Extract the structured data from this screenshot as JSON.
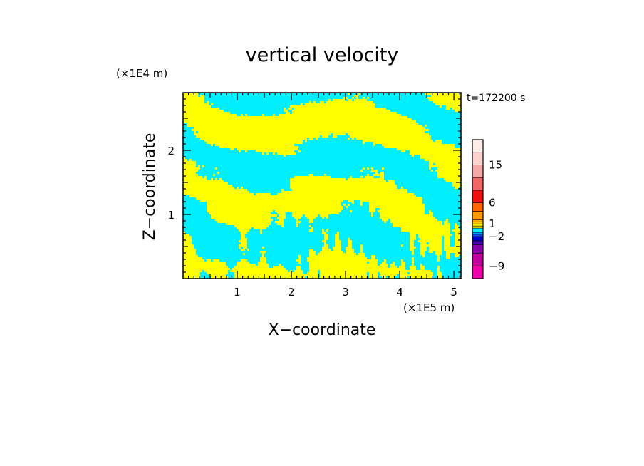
{
  "chart_data": {
    "type": "heatmap",
    "title": "vertical velocity",
    "xlabel": "X−coordinate",
    "ylabel": "Z−coordinate",
    "x_unit": "(×1E5 m)",
    "y_unit": "(×1E4 m)",
    "time_label": "t=172200 s",
    "xlim": [
      0,
      5.13
    ],
    "ylim": [
      0,
      2.9
    ],
    "x_ticks": [
      {
        "value": 1,
        "label": "1"
      },
      {
        "value": 2,
        "label": "2"
      },
      {
        "value": 3,
        "label": "3"
      },
      {
        "value": 4,
        "label": "4"
      },
      {
        "value": 5,
        "label": "5"
      }
    ],
    "y_ticks": [
      {
        "value": 1,
        "label": "1"
      },
      {
        "value": 2,
        "label": "2"
      }
    ],
    "field_colors": {
      "positive": "#ffff00",
      "negative": "#00efff"
    },
    "colorbar": {
      "levels": [
        {
          "lo": -12,
          "hi": -9,
          "color": "#ee00aa"
        },
        {
          "lo": -9,
          "hi": -6,
          "color": "#c0009a"
        },
        {
          "lo": -6,
          "hi": -4,
          "color": "#8800aa"
        },
        {
          "lo": -4,
          "hi": -3,
          "color": "#4400aa"
        },
        {
          "lo": -3,
          "hi": -2,
          "color": "#0000cc"
        },
        {
          "lo": -2,
          "hi": -1.5,
          "color": "#0055ff"
        },
        {
          "lo": -1.5,
          "hi": -1,
          "color": "#0099ff"
        },
        {
          "lo": -1,
          "hi": 0,
          "color": "#00efff"
        },
        {
          "lo": 0,
          "hi": 0.5,
          "color": "#ffff00"
        },
        {
          "lo": 0.5,
          "hi": 1,
          "color": "#ffee00"
        },
        {
          "lo": 1,
          "hi": 1.5,
          "color": "#ffcc00"
        },
        {
          "lo": 1.5,
          "hi": 2,
          "color": "#ffaa00"
        },
        {
          "lo": 2,
          "hi": 4,
          "color": "#ff9900"
        },
        {
          "lo": 4,
          "hi": 6,
          "color": "#ff6600"
        },
        {
          "lo": 6,
          "hi": 9,
          "color": "#ee1111"
        },
        {
          "lo": 9,
          "hi": 12,
          "color": "#ee6666"
        },
        {
          "lo": 12,
          "hi": 15,
          "color": "#f5a8a8"
        },
        {
          "lo": 15,
          "hi": 18,
          "color": "#fbd2cc"
        },
        {
          "lo": 18,
          "hi": 21,
          "color": "#fdece8"
        }
      ],
      "tick_labels": [
        {
          "value": 15,
          "label": "15"
        },
        {
          "value": 6,
          "label": "6"
        },
        {
          "value": 1,
          "label": "1"
        },
        {
          "value": -2,
          "label": "−2"
        },
        {
          "value": -9,
          "label": "−9"
        }
      ]
    }
  }
}
